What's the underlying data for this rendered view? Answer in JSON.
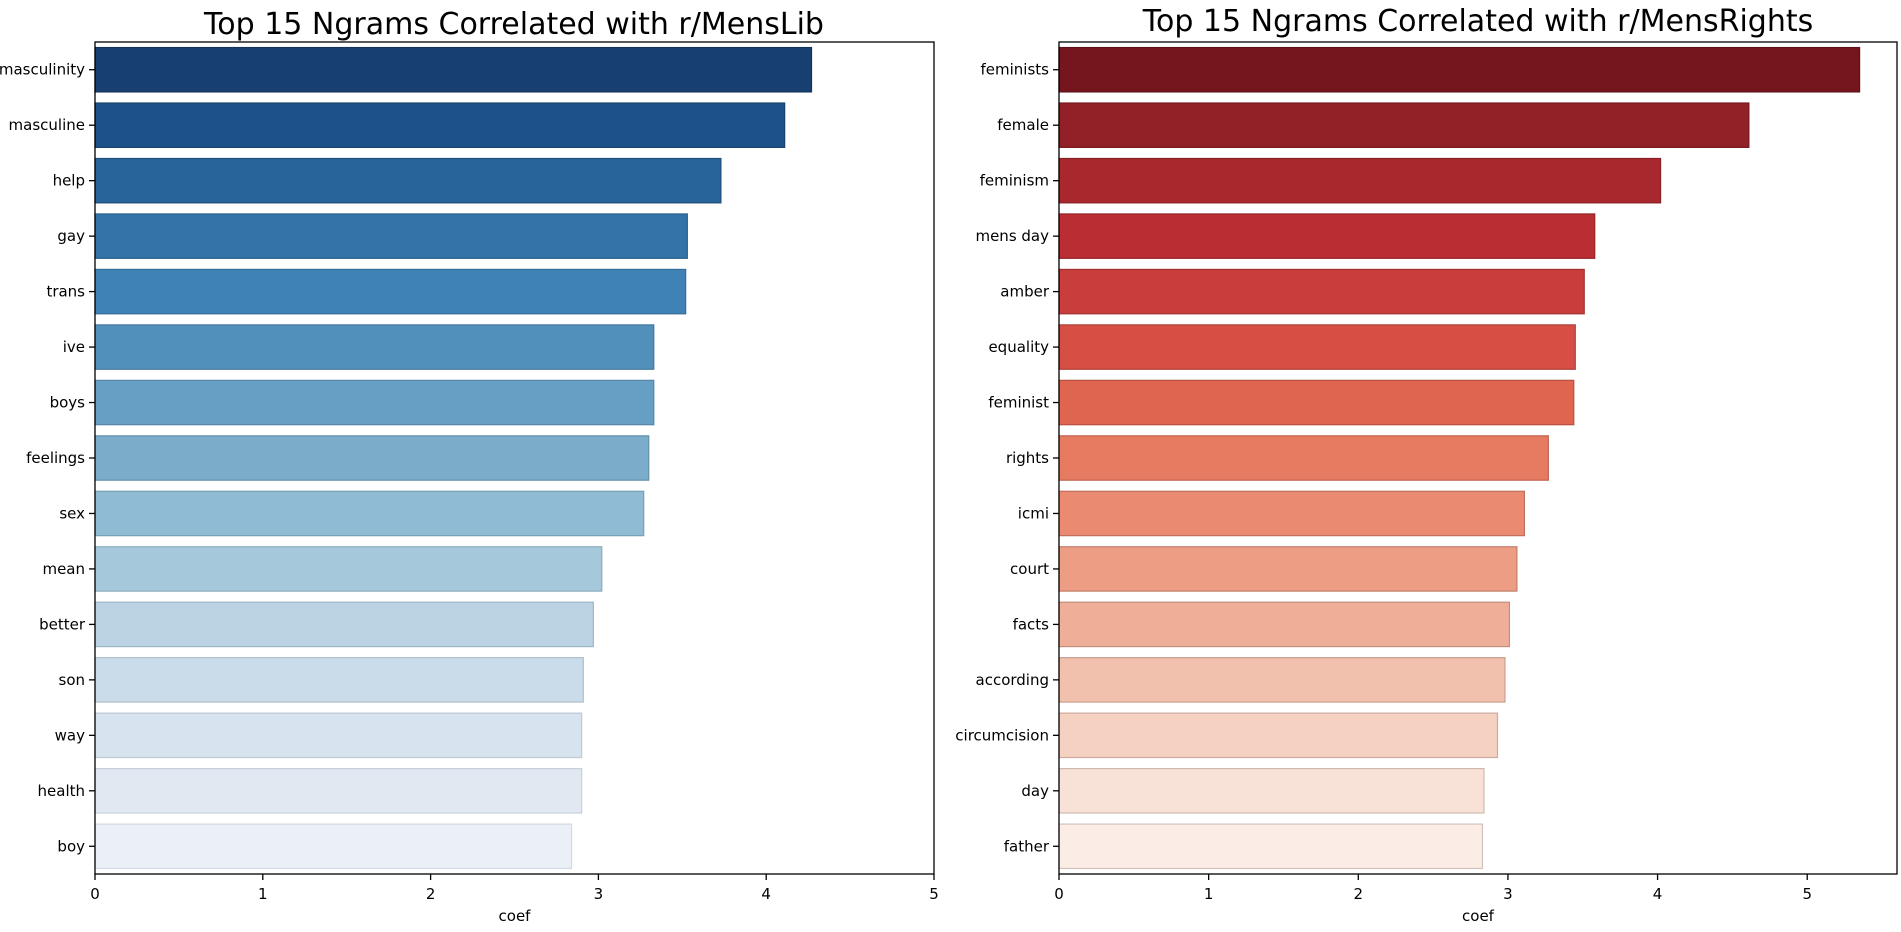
{
  "chart_data": [
    {
      "type": "bar",
      "orientation": "horizontal",
      "title": "Top 15 Ngrams Correlated with r/MensLib",
      "xlabel": "coef",
      "ylabel": "",
      "xlim": [
        0,
        5
      ],
      "xticks": [
        "0",
        "1",
        "2",
        "3",
        "4",
        "5"
      ],
      "colormap": "Blues",
      "categories": [
        "masculinity",
        "masculine",
        "help",
        "gay",
        "trans",
        "ive",
        "boys",
        "feelings",
        "sex",
        "mean",
        "better",
        "son",
        "way",
        "health",
        "boy"
      ],
      "values": [
        4.27,
        4.11,
        3.73,
        3.53,
        3.52,
        3.33,
        3.33,
        3.3,
        3.27,
        3.02,
        2.97,
        2.91,
        2.9,
        2.9,
        2.84
      ],
      "colors": [
        "#173f71",
        "#1c5189",
        "#28649a",
        "#3373a8",
        "#3f82b5",
        "#5190bb",
        "#659fc4",
        "#7bacca",
        "#8fbbd4",
        "#a5c8da",
        "#bbd3e3",
        "#cadbea",
        "#d7e3ef",
        "#e1e8f2",
        "#ebf0f7"
      ],
      "edge_colors": [
        "#123458",
        "#16426f",
        "#1f507c",
        "#2a5f8a",
        "#346c97",
        "#44789e",
        "#5686a6",
        "#6692ac",
        "#77a0b5",
        "#8aacbc",
        "#9db6c6",
        "#adc0ce",
        "#bccad6",
        "#c6d0dc",
        "#d2d9e2"
      ]
    },
    {
      "type": "bar",
      "orientation": "horizontal",
      "title": "Top 15 Ngrams Correlated with r/MensRights",
      "xlabel": "coef",
      "ylabel": "",
      "xlim": [
        0,
        5.6
      ],
      "xticks": [
        "0",
        "1",
        "2",
        "3",
        "4",
        "5"
      ],
      "colormap": "Reds",
      "categories": [
        "feminists",
        "female",
        "feminism",
        "mens day",
        "amber",
        "equality",
        "feminist",
        "rights",
        "icmi",
        "court",
        "facts",
        "according",
        "circumcision",
        "day",
        "father"
      ],
      "values": [
        5.35,
        4.61,
        4.02,
        3.58,
        3.51,
        3.45,
        3.44,
        3.27,
        3.11,
        3.06,
        3.01,
        2.98,
        2.93,
        2.84,
        2.83
      ],
      "colors": [
        "#75151d",
        "#912126",
        "#a8282e",
        "#b92d33",
        "#c93d3c",
        "#d64e44",
        "#e0654f",
        "#e77b62",
        "#ea8a70",
        "#ec9d84",
        "#efae97",
        "#f2c1ae",
        "#f5d1c2",
        "#f8e1d7",
        "#fbece6"
      ],
      "edge_colors": [
        "#5e1117",
        "#751a1f",
        "#882025",
        "#962429",
        "#a23131",
        "#ae3f37",
        "#b75141",
        "#bd6350",
        "#c0705b",
        "#c27f6b",
        "#c58e7b",
        "#c99e8e",
        "#ccab9e",
        "#d0b8ae",
        "#d3c2bb"
      ]
    }
  ]
}
